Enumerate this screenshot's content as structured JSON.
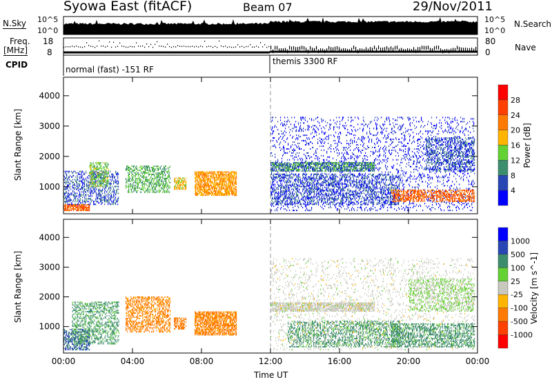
{
  "header": {
    "station": "Syowa East (fitACF)",
    "beam": "Beam 07",
    "date": "29/Nov/2011"
  },
  "nsky": {
    "left_label": "N.Sky",
    "right_label": "N.Search",
    "ticks": [
      "10^5",
      "10^0"
    ]
  },
  "freq": {
    "left_label": "Freq.",
    "unit": "[MHz]",
    "left_ticks": [
      "18",
      "8"
    ],
    "right_label": "Nave",
    "right_ticks": [
      "80",
      "0"
    ]
  },
  "cpid": {
    "label": "CPID",
    "segments": [
      {
        "start_hour": 0,
        "text": "normal (fast) -151 RF"
      },
      {
        "start_hour": 12,
        "text": "themis 3300 RF"
      }
    ]
  },
  "chart_data": [
    {
      "type": "heatmap",
      "title": "Power",
      "ylabel": "Slant Range [km]",
      "xlabel": "Time UT",
      "xlim": [
        0,
        24
      ],
      "ylim": [
        110,
        4610
      ],
      "yticks": [
        "1000",
        "2000",
        "3000",
        "4000"
      ],
      "xticks": [
        "00:00",
        "04:00",
        "08:00",
        "12:00",
        "16:00",
        "20:00",
        "00:00"
      ],
      "colorbar": {
        "label": "Power [dB]",
        "ticks": [
          "28",
          "24",
          "20",
          "16",
          "12",
          "8",
          "4"
        ],
        "colors": [
          "#ff0000",
          "#ff4000",
          "#ff7a00",
          "#ffb400",
          "#64d232",
          "#3c8c6e",
          "#2846b4",
          "#0000ff"
        ]
      },
      "regions": [
        {
          "t": [
            0,
            1.5
          ],
          "r": [
            200,
            400
          ],
          "v": 24,
          "density": 0.8
        },
        {
          "t": [
            0,
            3.2
          ],
          "r": [
            400,
            1500
          ],
          "v": 6,
          "density": 0.35
        },
        {
          "t": [
            1.5,
            2.6
          ],
          "r": [
            1000,
            1800
          ],
          "v": 13,
          "density": 0.5
        },
        {
          "t": [
            3.6,
            6.2
          ],
          "r": [
            800,
            1700
          ],
          "v": 12,
          "density": 0.45
        },
        {
          "t": [
            6.4,
            7.1
          ],
          "r": [
            900,
            1300
          ],
          "v": 18,
          "density": 0.6
        },
        {
          "t": [
            7.6,
            10
          ],
          "r": [
            700,
            1500
          ],
          "v": 20,
          "density": 0.7
        },
        {
          "t": [
            12,
            18
          ],
          "r": [
            1500,
            1800
          ],
          "v": 10,
          "density": 0.7
        },
        {
          "t": [
            12,
            19.5
          ],
          "r": [
            400,
            1400
          ],
          "v": 6,
          "density": 0.35
        },
        {
          "t": [
            12,
            23.8
          ],
          "r": [
            200,
            3300
          ],
          "v": 3,
          "density": 0.12
        },
        {
          "t": [
            19,
            23.8
          ],
          "r": [
            500,
            900
          ],
          "v": 24,
          "density": 0.5
        },
        {
          "t": [
            21,
            23.8
          ],
          "r": [
            1500,
            2600
          ],
          "v": 6,
          "density": 0.4
        }
      ]
    },
    {
      "type": "heatmap",
      "title": "Velocity",
      "ylabel": "Slant Range [km]",
      "xlabel": "Time UT",
      "xlim": [
        0,
        24
      ],
      "ylim": [
        110,
        4610
      ],
      "yticks": [
        "1000",
        "2000",
        "3000",
        "4000"
      ],
      "xticks": [
        "00:00",
        "04:00",
        "08:00",
        "12:00",
        "16:00",
        "20:00",
        "00:00"
      ],
      "colorbar": {
        "label": "Velocity [m s^-1]",
        "ticks": [
          "1000",
          "500",
          "100",
          "25",
          "-25",
          "-100",
          "-500",
          "-1000"
        ],
        "colors": [
          "#0000ff",
          "#2846b4",
          "#3c8c6e",
          "#64d232",
          "#c8c8be",
          "#ffb400",
          "#ff7a00",
          "#ff4000",
          "#ff0000"
        ]
      },
      "regions": [
        {
          "t": [
            0,
            1.5
          ],
          "r": [
            200,
            900
          ],
          "v": 600,
          "density": 0.5
        },
        {
          "t": [
            0.5,
            3.2
          ],
          "r": [
            400,
            1800
          ],
          "v": 150,
          "density": 0.4
        },
        {
          "t": [
            3.6,
            6.2
          ],
          "r": [
            800,
            2000
          ],
          "v": -200,
          "density": 0.45
        },
        {
          "t": [
            6.4,
            7.1
          ],
          "r": [
            900,
            1300
          ],
          "v": -300,
          "density": 0.6
        },
        {
          "t": [
            7.6,
            10
          ],
          "r": [
            700,
            1500
          ],
          "v": -200,
          "density": 0.7
        },
        {
          "t": [
            12,
            18
          ],
          "r": [
            1500,
            1800
          ],
          "v": 0,
          "density": 0.7
        },
        {
          "t": [
            13,
            19.5
          ],
          "r": [
            300,
            1200
          ],
          "v": 200,
          "density": 0.4
        },
        {
          "t": [
            12,
            23.8
          ],
          "r": [
            200,
            3300
          ],
          "v": 0,
          "density": 0.1
        },
        {
          "t": [
            19,
            23.8
          ],
          "r": [
            300,
            1100
          ],
          "v": 200,
          "density": 0.45
        },
        {
          "t": [
            20,
            23.8
          ],
          "r": [
            1500,
            2600
          ],
          "v": 30,
          "density": 0.35
        }
      ]
    }
  ]
}
